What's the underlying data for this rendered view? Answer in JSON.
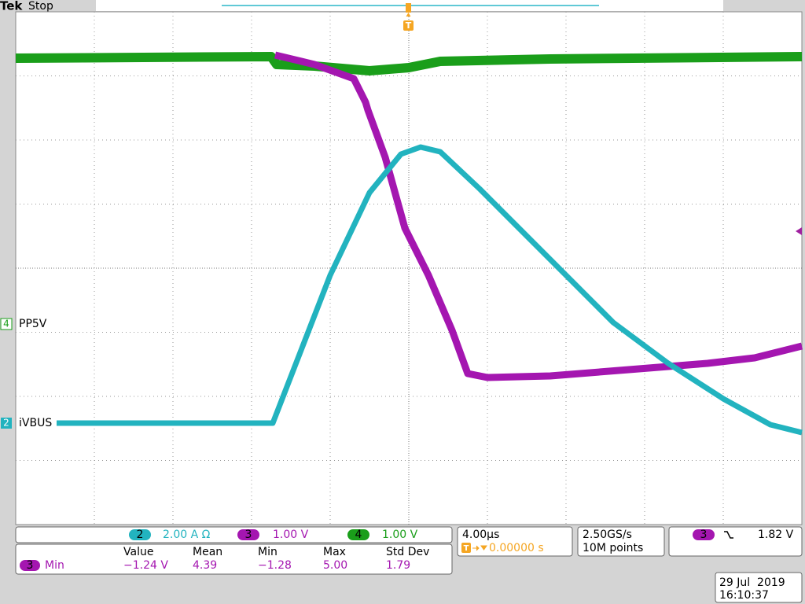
{
  "header": {
    "brand": "Tek",
    "status": "Stop"
  },
  "screen": {
    "trigger_marker": "T",
    "ch4_marker": "4",
    "ch4_label": "PP5V",
    "ch2_marker": "2",
    "ch2_label": "iVBUS"
  },
  "channels": {
    "ch2": {
      "number": "2",
      "scale": "2.00 A Ω"
    },
    "ch3": {
      "number": "3",
      "scale": "1.00 V"
    },
    "ch4": {
      "number": "4",
      "scale": "1.00 V"
    }
  },
  "measurements": {
    "headers": [
      "Value",
      "Mean",
      "Min",
      "Max",
      "Std Dev"
    ],
    "row": {
      "source": "3",
      "type": "Min",
      "values": [
        "−1.24 V",
        "4.39",
        "−1.28",
        "5.00",
        "1.79"
      ]
    }
  },
  "timebase": {
    "scale": "4.00µs",
    "offset": "0.00000 s"
  },
  "acquisition": {
    "sample_rate": "2.50GS/s",
    "record_length": "10M points"
  },
  "trigger": {
    "source": "3",
    "level": "1.82 V"
  },
  "datetime": {
    "date": "29 Jul  2019",
    "time": "16:10:37"
  }
}
